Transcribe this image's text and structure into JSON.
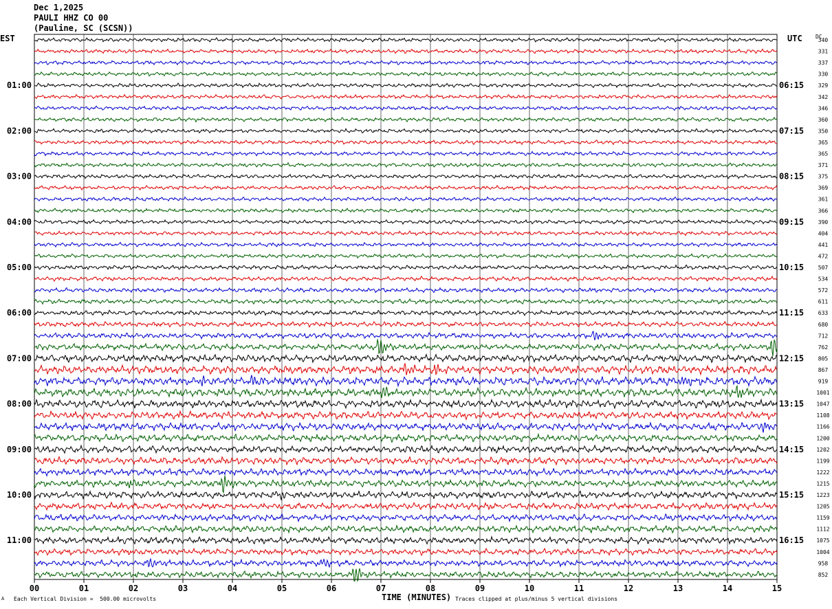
{
  "header": {
    "date": "Dec 1,2025",
    "station": "PAULI HHZ CO 00",
    "location": "(Pauline, SC (SCSN))"
  },
  "left_tz": "EST",
  "right_tz": "UTC",
  "dc_label": "DC",
  "footer": {
    "scale_note": "Each Vertical Division =  500.00 microvolts",
    "clip_note": "Traces clipped at plus/minus 5 vertical divisions",
    "corner_mark": "A"
  },
  "colors": {
    "trace_cycle": [
      "#000000",
      "#e00000",
      "#0000d0",
      "#006000"
    ],
    "grid": "#000000"
  },
  "chart_data": {
    "type": "line",
    "xlabel": "TIME (MINUTES)",
    "xlim": [
      0,
      15
    ],
    "x_ticks": [
      "00",
      "01",
      "02",
      "03",
      "04",
      "05",
      "06",
      "07",
      "08",
      "09",
      "10",
      "11",
      "12",
      "13",
      "14",
      "15"
    ],
    "left_time_labels": [
      "01:00",
      "02:00",
      "03:00",
      "04:00",
      "05:00",
      "06:00",
      "07:00",
      "08:00",
      "09:00",
      "10:00",
      "11:00"
    ],
    "right_time_labels": [
      "06:15",
      "07:15",
      "08:15",
      "09:15",
      "10:15",
      "11:15",
      "12:15",
      "13:15",
      "14:15",
      "15:15",
      "16:15"
    ],
    "dc_offsets": [
      340,
      331,
      337,
      330,
      329,
      342,
      346,
      360,
      350,
      365,
      365,
      371,
      375,
      369,
      361,
      366,
      390,
      404,
      441,
      472,
      507,
      534,
      572,
      611,
      633,
      680,
      712,
      762,
      805,
      867,
      919,
      1001,
      1047,
      1108,
      1166,
      1200,
      1202,
      1199,
      1222,
      1215,
      1223,
      1205,
      1159,
      1112,
      1075,
      1004,
      958,
      852
    ],
    "noise_levels": [
      1,
      1,
      1,
      1,
      1,
      1,
      1,
      1,
      1,
      1,
      1,
      1,
      1,
      1,
      1,
      1,
      1,
      1,
      1,
      1,
      1.1,
      1.1,
      1.1,
      1.2,
      1.2,
      1.3,
      1.4,
      1.6,
      1.9,
      2.1,
      2.2,
      2.1,
      2.0,
      1.9,
      1.9,
      1.8,
      1.8,
      1.8,
      1.8,
      1.8,
      1.8,
      1.7,
      1.7,
      1.7,
      1.7,
      1.6,
      1.6,
      1.6
    ],
    "events": [
      {
        "row": 26,
        "minute": 11.3,
        "amp": 3.5
      },
      {
        "row": 27,
        "minute": 6.95,
        "amp": 6
      },
      {
        "row": 27,
        "minute": 14.9,
        "amp": 6
      },
      {
        "row": 29,
        "minute": 7.5,
        "amp": 4
      },
      {
        "row": 29,
        "minute": 8.1,
        "amp": 3
      },
      {
        "row": 30,
        "minute": 3.3,
        "amp": 3
      },
      {
        "row": 30,
        "minute": 4.4,
        "amp": 3
      },
      {
        "row": 30,
        "minute": 13.1,
        "amp": 4
      },
      {
        "row": 31,
        "minute": 14.2,
        "amp": 4
      },
      {
        "row": 31,
        "minute": 7.0,
        "amp": 4
      },
      {
        "row": 34,
        "minute": 14.7,
        "amp": 3
      },
      {
        "row": 39,
        "minute": 3.8,
        "amp": 5
      },
      {
        "row": 39,
        "minute": 1.9,
        "amp": 2.5
      },
      {
        "row": 40,
        "minute": 4.9,
        "amp": 3
      },
      {
        "row": 46,
        "minute": 2.3,
        "amp": 3
      },
      {
        "row": 46,
        "minute": 5.8,
        "amp": 3
      },
      {
        "row": 47,
        "minute": 6.45,
        "amp": 6
      }
    ]
  }
}
